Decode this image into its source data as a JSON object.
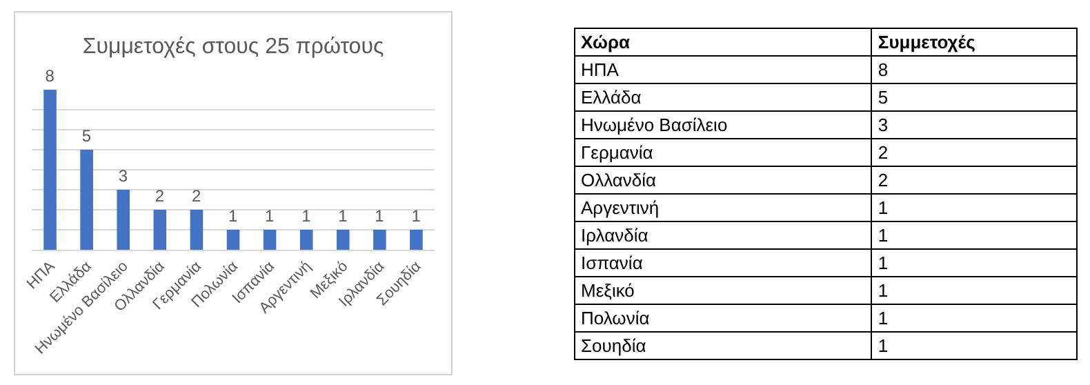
{
  "chart_data": [
    {
      "type": "bar",
      "title": "Συμμετοχές στους 25 πρώτους",
      "categories": [
        "ΗΠΑ",
        "Ελλάδα",
        "Ηνωμένο Βασίλειο",
        "Ολλανδία",
        "Γερμανία",
        "Πολωνία",
        "Ισπανία",
        "Αργεντινή",
        "Μεξικό",
        "Ιρλανδία",
        "Σουηδία"
      ],
      "values": [
        8,
        5,
        3,
        2,
        2,
        1,
        1,
        1,
        1,
        1,
        1
      ],
      "color": "#4472c4",
      "data_labels": true,
      "grid": "y",
      "ylim": [
        0,
        8
      ],
      "yticks": [
        {
          "value": 0,
          "label": null
        },
        {
          "value": 1,
          "label": null
        },
        {
          "value": 2,
          "label": null
        },
        {
          "value": 3,
          "label": null
        },
        {
          "value": 4,
          "label": null
        },
        {
          "value": 5,
          "label": null
        },
        {
          "value": 6,
          "label": null
        },
        {
          "value": 7,
          "label": null
        }
      ],
      "tick_labels": "x"
    },
    {
      "type": "other",
      "xlabel": "Χώρα",
      "ylabel": "Συμμετοχές",
      "data_labels": true,
      "categories": [
        "ΗΠΑ",
        "Ελλάδα",
        "Ηνωμένο Βασίλειο",
        "Γερμανία",
        "Ολλανδία",
        "Αργεντινή",
        "Ιρλανδία",
        "Ισπανία",
        "Μεξικό",
        "Πολωνία",
        "Σουηδία"
      ],
      "values": [
        8,
        5,
        3,
        2,
        2,
        1,
        1,
        1,
        1,
        1,
        1
      ]
    }
  ]
}
